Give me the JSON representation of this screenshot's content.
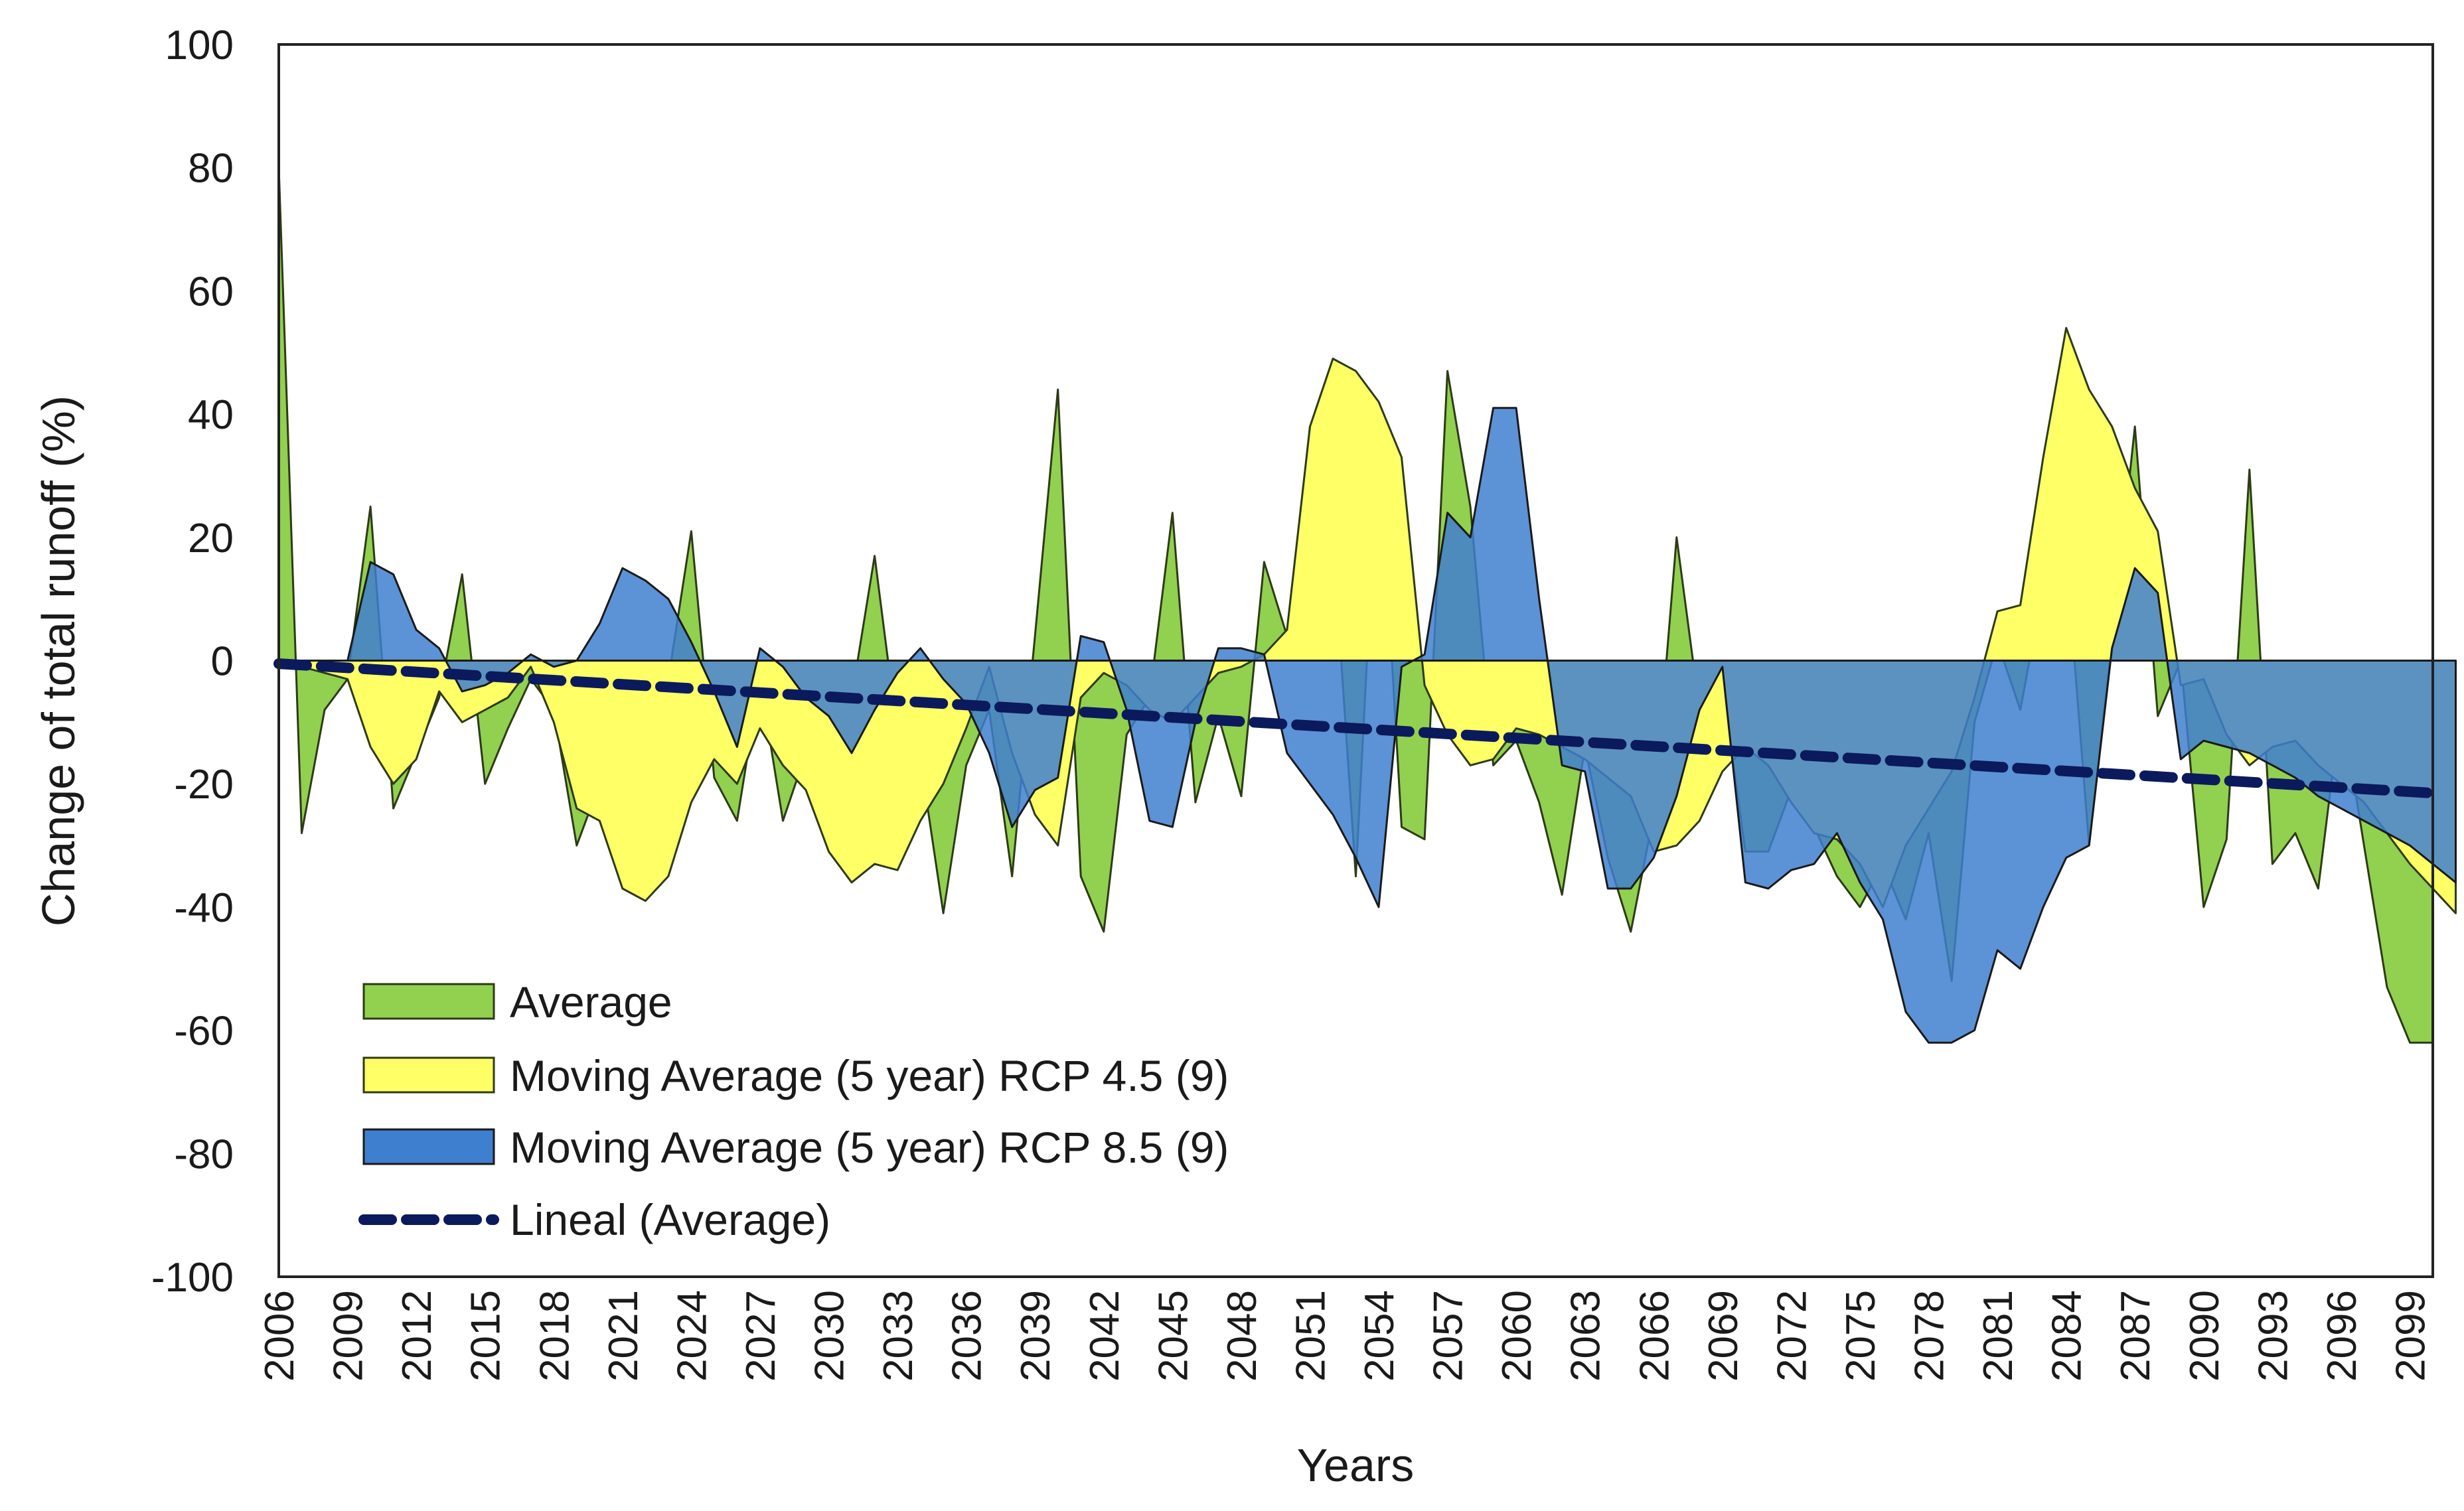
{
  "chart_data": {
    "type": "area",
    "title": "",
    "xlabel": "Years",
    "ylabel": "Change of total runoff (%)",
    "ylim": [
      -100,
      100
    ],
    "yticks": [
      100,
      80,
      60,
      40,
      20,
      0,
      -20,
      -40,
      -60,
      -80,
      -100
    ],
    "ytick_labels": [
      "100",
      "80",
      "60",
      "40",
      "20",
      "0",
      "-20",
      "-40",
      "-60",
      "-80",
      "-100"
    ],
    "xlim": [
      2006,
      2100
    ],
    "xticks": [
      2006,
      2009,
      2012,
      2015,
      2018,
      2021,
      2024,
      2027,
      2030,
      2033,
      2036,
      2039,
      2042,
      2045,
      2048,
      2051,
      2054,
      2057,
      2060,
      2063,
      2066,
      2069,
      2072,
      2075,
      2078,
      2081,
      2084,
      2087,
      2090,
      2093,
      2096,
      2099
    ],
    "xtick_labels": [
      "2006",
      "2009",
      "2012",
      "2015",
      "2018",
      "2021",
      "2024",
      "2027",
      "2030",
      "2033",
      "2036",
      "2039",
      "2042",
      "2045",
      "2048",
      "2051",
      "2054",
      "2057",
      "2060",
      "2063",
      "2066",
      "2069",
      "2072",
      "2075",
      "2078",
      "2081",
      "2084",
      "2087",
      "2090",
      "2093",
      "2096",
      "2099"
    ],
    "years_start": 2006,
    "legend_position": "bottom-left",
    "series": [
      {
        "name": "Average",
        "kind": "area",
        "color": "#92d050",
        "edge": "#2d3b16",
        "values": [
          80,
          -28,
          -8,
          -3,
          25,
          -24,
          -15,
          -6,
          14,
          -20,
          -11,
          -3,
          -8,
          -30,
          -20,
          -25,
          -34,
          -3,
          21,
          -19,
          -26,
          -3,
          -26,
          -15,
          -10,
          -6,
          17,
          -12,
          -16,
          -41,
          -17,
          -8,
          -35,
          4,
          44,
          -35,
          -44,
          -12,
          -6,
          24,
          -23,
          -9,
          -22,
          16,
          4,
          38,
          20,
          -35,
          37,
          -27,
          -29,
          47,
          25,
          -17,
          -13,
          -23,
          -38,
          -14,
          -32,
          -44,
          -25,
          20,
          -8,
          -4,
          -31,
          -31,
          -21,
          -27,
          -35,
          -40,
          -33,
          -42,
          -28,
          -52,
          -10,
          3,
          -8,
          12,
          17,
          -30,
          3,
          38,
          -9,
          0,
          -40,
          -29,
          31,
          -33,
          -28,
          -37,
          -7,
          -30,
          -53,
          -62,
          -62
        ]
      },
      {
        "name": "Moving Average (5 year) RCP 4.5 (9)",
        "kind": "area",
        "color": "#ffff66",
        "edge": "#2d3b16",
        "values": [
          0,
          -1,
          -2,
          -3,
          -14,
          -20,
          -16,
          -5,
          -10,
          -8,
          -6,
          -1,
          -10,
          -24,
          -26,
          -37,
          -39,
          -35,
          -23,
          -16,
          -20,
          -11,
          -17,
          -21,
          -31,
          -36,
          -33,
          -34,
          -26,
          -20,
          -11,
          -1,
          -15,
          -25,
          -30,
          -6,
          -2,
          -4,
          -8,
          -10,
          -6,
          -2,
          -1,
          1,
          5,
          38,
          49,
          47,
          42,
          33,
          -4,
          -12,
          -17,
          -16,
          -11,
          -12,
          -14,
          -16,
          -19,
          -22,
          -31,
          -30,
          -26,
          -18,
          -14,
          -17,
          -23,
          -28,
          -29,
          -33,
          -40,
          -30,
          -24,
          -18,
          -6,
          8,
          9,
          33,
          54,
          44,
          38,
          28,
          21,
          -4,
          -3,
          -12,
          -17,
          -14,
          -13,
          -17,
          -20,
          -23,
          -28,
          -33,
          -37,
          -41
        ]
      },
      {
        "name": "Moving Average (5 year) RCP 8.5 (9)",
        "kind": "area",
        "color": "#3f7fcf",
        "edge": "#1a1a1a",
        "values": [
          0,
          0,
          0,
          0,
          16,
          14,
          5,
          2,
          -5,
          -4,
          -2,
          1,
          -1,
          0,
          6,
          15,
          13,
          10,
          3,
          -5,
          -14,
          2,
          -1,
          -6,
          -9,
          -15,
          -8,
          -2,
          2,
          -3,
          -7,
          -15,
          -27,
          -21,
          -19,
          4,
          3,
          -8,
          -26,
          -27,
          -10,
          2,
          2,
          1,
          -15,
          -20,
          -25,
          -32,
          -40,
          -1,
          1,
          24,
          20,
          41,
          41,
          10,
          -17,
          -18,
          -37,
          -37,
          -32,
          -22,
          -8,
          -1,
          -36,
          -37,
          -34,
          -33,
          -28,
          -36,
          -42,
          -57,
          -62,
          -62,
          -60,
          -47,
          -50,
          -40,
          -32,
          -30,
          2,
          15,
          11,
          -16,
          -13,
          -14,
          -15,
          -17,
          -19,
          -22,
          -24,
          -26,
          -28,
          -30,
          -33,
          -36
        ]
      },
      {
        "name": "Lineal (Average)",
        "kind": "line",
        "color": "#0b1a5c",
        "dashed": true,
        "start": [
          2006,
          -0.5
        ],
        "end": [
          2100,
          -21.5
        ]
      }
    ]
  }
}
